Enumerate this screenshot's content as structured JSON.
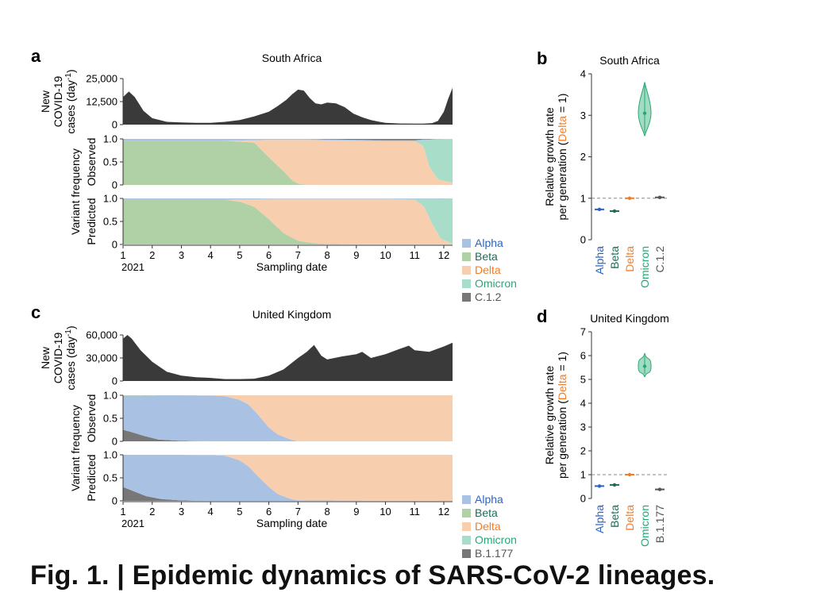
{
  "caption": "Fig. 1. | Epidemic dynamics of SARS-CoV-2 lineages.",
  "colors": {
    "Alpha": "#a9c1e3",
    "Beta": "#b0d0a6",
    "Delta": "#f8cfae",
    "Omicron": "#a8ddc9",
    "C.1.2": "#777777",
    "B.1.177": "#777777",
    "cases": "#3a3a3a",
    "AlphaDark": "#2b63c4",
    "BetaDark": "#1e6b58",
    "DeltaDark": "#f07c2a",
    "OmicronDark": "#2aa676",
    "OtherDark": "#555555"
  },
  "labels": {
    "sampling_date": "Sampling date",
    "new_cases_1": "New",
    "new_cases_2": "COVID-19",
    "new_cases_3": "cases (day",
    "new_cases_sup": "-1",
    "new_cases_end": ")",
    "variant_freq": "Variant frequency",
    "observed": "Observed",
    "predicted": "Predicted",
    "growth_1": "Relative growth rate",
    "growth_2a": "per generation (",
    "growth_delta": "Delta",
    "growth_2b": " = 1)"
  },
  "chart_data": [
    {
      "panel": "a",
      "title": "South Africa",
      "type": "area",
      "x_ticks": [
        "1",
        "2",
        "3",
        "4",
        "5",
        "6",
        "7",
        "8",
        "9",
        "10",
        "11",
        "12"
      ],
      "x_year": "2021",
      "xlabel": "Sampling date",
      "cases": {
        "ylim": [
          0,
          25000
        ],
        "yticks": [
          "0",
          "12,500",
          "25,000"
        ],
        "x": [
          1.0,
          1.2,
          1.4,
          1.7,
          2.0,
          2.5,
          3.0,
          3.5,
          4.0,
          4.5,
          5.0,
          5.5,
          6.0,
          6.3,
          6.6,
          6.8,
          7.0,
          7.2,
          7.4,
          7.6,
          7.8,
          8.0,
          8.3,
          8.6,
          8.9,
          9.2,
          9.5,
          9.8,
          10.0,
          10.5,
          11.0,
          11.3,
          11.6,
          11.8,
          12.0,
          12.15,
          12.3
        ],
        "y": [
          15000,
          18000,
          15000,
          7500,
          3500,
          1500,
          1200,
          1000,
          1000,
          1500,
          2500,
          4500,
          7000,
          10000,
          13500,
          16500,
          19000,
          18500,
          14500,
          11500,
          11000,
          12000,
          11500,
          9500,
          6000,
          4000,
          2500,
          1500,
          1000,
          600,
          500,
          500,
          800,
          2000,
          7000,
          14000,
          20000
        ]
      },
      "observed": {
        "ylim": [
          0,
          1
        ],
        "yticks": [
          "0",
          "0.5",
          "1.0"
        ],
        "x": [
          1,
          4.5,
          5.5,
          6.0,
          6.5,
          6.8,
          7.0,
          7.3,
          8.0,
          10.0,
          11.0,
          11.3,
          11.5,
          11.8,
          12.3
        ],
        "series": [
          {
            "name": "Beta",
            "values": [
              0.96,
              0.96,
              0.92,
              0.6,
              0.3,
              0.1,
              0.03,
              0.0,
              0.0,
              0.0,
              0.0,
              0.0,
              0.0,
              0.0,
              0.0
            ]
          },
          {
            "name": "Delta",
            "values": [
              0.0,
              0.0,
              0.05,
              0.38,
              0.68,
              0.88,
              0.95,
              0.98,
              0.97,
              0.95,
              0.95,
              0.85,
              0.4,
              0.12,
              0.05
            ]
          },
          {
            "name": "Omicron",
            "values": [
              0.0,
              0.0,
              0.0,
              0.0,
              0.0,
              0.0,
              0.0,
              0.0,
              0.0,
              0.0,
              0.0,
              0.12,
              0.58,
              0.87,
              0.95
            ]
          },
          {
            "name": "Alpha",
            "values": [
              0.04,
              0.04,
              0.03,
              0.02,
              0.02,
              0.02,
              0.02,
              0.02,
              0.02,
              0.02,
              0.02,
              0.02,
              0.01,
              0.01,
              0.0
            ]
          },
          {
            "name": "C.1.2",
            "values": [
              0.0,
              0.0,
              0.0,
              0.0,
              0.0,
              0.0,
              0.0,
              0.0,
              0.01,
              0.03,
              0.03,
              0.01,
              0.01,
              0.0,
              0.0
            ]
          }
        ]
      },
      "predicted": {
        "ylim": [
          0,
          1
        ],
        "yticks": [
          "0",
          "0.5",
          "1.0"
        ],
        "x": [
          1,
          4.5,
          5.0,
          5.5,
          6.0,
          6.5,
          7.0,
          7.5,
          8.0,
          10.0,
          11.0,
          11.3,
          11.6,
          11.9,
          12.3
        ],
        "series": [
          {
            "name": "Beta",
            "values": [
              0.97,
              0.97,
              0.93,
              0.82,
              0.55,
              0.25,
              0.08,
              0.03,
              0.01,
              0.0,
              0.0,
              0.0,
              0.0,
              0.0,
              0.0
            ]
          },
          {
            "name": "Delta",
            "values": [
              0.0,
              0.0,
              0.05,
              0.16,
              0.44,
              0.74,
              0.91,
              0.96,
              0.98,
              0.99,
              0.97,
              0.85,
              0.45,
              0.12,
              0.02
            ]
          },
          {
            "name": "Omicron",
            "values": [
              0.0,
              0.0,
              0.0,
              0.0,
              0.0,
              0.0,
              0.0,
              0.0,
              0.0,
              0.0,
              0.02,
              0.14,
              0.54,
              0.87,
              0.98
            ]
          },
          {
            "name": "Alpha",
            "values": [
              0.03,
              0.03,
              0.02,
              0.02,
              0.01,
              0.01,
              0.01,
              0.01,
              0.01,
              0.01,
              0.01,
              0.01,
              0.01,
              0.01,
              0.0
            ]
          },
          {
            "name": "C.1.2",
            "values": [
              0.0,
              0.0,
              0.0,
              0.0,
              0.0,
              0.0,
              0.0,
              0.0,
              0.0,
              0.0,
              0.0,
              0.0,
              0.0,
              0.0,
              0.0
            ]
          }
        ]
      },
      "legend": [
        "Alpha",
        "Beta",
        "Delta",
        "Omicron",
        "C.1.2"
      ]
    },
    {
      "panel": "b",
      "title": "South Africa",
      "type": "scatter",
      "ylim": [
        0,
        4
      ],
      "yticks": [
        "0",
        "1",
        "2",
        "3",
        "4"
      ],
      "ylabel": "Relative growth rate per generation (Delta = 1)",
      "reference": 1,
      "categories": [
        "Alpha",
        "Beta",
        "Delta",
        "Omicron",
        "C.1.2"
      ],
      "values": [
        0.73,
        0.69,
        1.0,
        3.05,
        1.02
      ],
      "ci_low": [
        0.69,
        0.65,
        0.98,
        2.5,
        0.99
      ],
      "ci_high": [
        0.77,
        0.73,
        1.02,
        3.8,
        1.05
      ]
    },
    {
      "panel": "c",
      "title": "United Kingdom",
      "type": "area",
      "x_ticks": [
        "1",
        "2",
        "3",
        "4",
        "5",
        "6",
        "7",
        "8",
        "9",
        "10",
        "11",
        "12"
      ],
      "x_year": "2021",
      "xlabel": "Sampling date",
      "cases": {
        "ylim": [
          0,
          60000
        ],
        "yticks": [
          "0",
          "30,000",
          "60,000"
        ],
        "x": [
          1.0,
          1.15,
          1.3,
          1.6,
          2.0,
          2.5,
          3.0,
          3.5,
          4.0,
          4.5,
          5.0,
          5.5,
          6.0,
          6.5,
          7.0,
          7.3,
          7.55,
          7.8,
          8.0,
          8.5,
          9.0,
          9.2,
          9.5,
          10.0,
          10.5,
          10.8,
          11.0,
          11.5,
          12.0,
          12.3
        ],
        "y": [
          55000,
          60000,
          55000,
          40000,
          25000,
          12000,
          7000,
          5000,
          4000,
          2500,
          2500,
          3000,
          7000,
          15000,
          30000,
          38000,
          47000,
          33000,
          28000,
          32000,
          35000,
          38000,
          30000,
          35000,
          42000,
          46000,
          40000,
          38000,
          45000,
          50000
        ]
      },
      "observed": {
        "ylim": [
          0,
          1
        ],
        "yticks": [
          "0",
          "0.5",
          "1.0"
        ],
        "x": [
          1,
          1.3,
          1.7,
          2.2,
          3.0,
          4.0,
          4.5,
          5.0,
          5.3,
          5.6,
          6.0,
          6.3,
          6.7,
          7.0,
          12.3
        ],
        "series": [
          {
            "name": "B.1.177",
            "values": [
              0.25,
              0.2,
              0.12,
              0.04,
              0.01,
              0.0,
              0.0,
              0.0,
              0.0,
              0.0,
              0.0,
              0.0,
              0.0,
              0.0,
              0.0
            ]
          },
          {
            "name": "Alpha",
            "values": [
              0.74,
              0.79,
              0.87,
              0.96,
              0.99,
              0.995,
              0.98,
              0.9,
              0.8,
              0.6,
              0.3,
              0.15,
              0.05,
              0.0,
              0.0
            ]
          },
          {
            "name": "Delta",
            "values": [
              0.0,
              0.0,
              0.0,
              0.0,
              0.0,
              0.005,
              0.02,
              0.1,
              0.2,
              0.4,
              0.7,
              0.85,
              0.95,
              1.0,
              1.0
            ]
          },
          {
            "name": "Beta",
            "values": [
              0.01,
              0.01,
              0.01,
              0.0,
              0.0,
              0.0,
              0.0,
              0.0,
              0.0,
              0.0,
              0.0,
              0.0,
              0.0,
              0.0,
              0.0
            ]
          },
          {
            "name": "Omicron",
            "values": [
              0.0,
              0.0,
              0.0,
              0.0,
              0.0,
              0.0,
              0.0,
              0.0,
              0.0,
              0.0,
              0.0,
              0.0,
              0.0,
              0.0,
              0.0
            ]
          }
        ]
      },
      "predicted": {
        "ylim": [
          0,
          1
        ],
        "yticks": [
          "0",
          "0.5",
          "1.0"
        ],
        "x": [
          1,
          1.4,
          1.8,
          2.3,
          3.0,
          4.0,
          4.5,
          5.0,
          5.3,
          5.6,
          6.0,
          6.3,
          6.7,
          7.0,
          12.3
        ],
        "series": [
          {
            "name": "B.1.177",
            "values": [
              0.3,
              0.2,
              0.1,
              0.04,
              0.01,
              0.0,
              0.0,
              0.0,
              0.0,
              0.0,
              0.0,
              0.0,
              0.0,
              0.0,
              0.0
            ]
          },
          {
            "name": "Alpha",
            "values": [
              0.7,
              0.8,
              0.9,
              0.96,
              0.99,
              0.995,
              0.98,
              0.88,
              0.75,
              0.55,
              0.3,
              0.15,
              0.05,
              0.01,
              0.0
            ]
          },
          {
            "name": "Delta",
            "values": [
              0.0,
              0.0,
              0.0,
              0.0,
              0.0,
              0.005,
              0.02,
              0.12,
              0.25,
              0.45,
              0.7,
              0.85,
              0.95,
              0.99,
              1.0
            ]
          },
          {
            "name": "Beta",
            "values": [
              0.0,
              0.0,
              0.0,
              0.0,
              0.0,
              0.0,
              0.0,
              0.0,
              0.0,
              0.0,
              0.0,
              0.0,
              0.0,
              0.0,
              0.0
            ]
          },
          {
            "name": "Omicron",
            "values": [
              0.0,
              0.0,
              0.0,
              0.0,
              0.0,
              0.0,
              0.0,
              0.0,
              0.0,
              0.0,
              0.0,
              0.0,
              0.0,
              0.0,
              0.0
            ]
          }
        ]
      },
      "legend": [
        "Alpha",
        "Beta",
        "Delta",
        "Omicron",
        "B.1.177"
      ]
    },
    {
      "panel": "d",
      "title": "United Kingdom",
      "type": "scatter",
      "ylim": [
        0,
        7
      ],
      "yticks": [
        "0",
        "1",
        "2",
        "3",
        "4",
        "5",
        "6",
        "7"
      ],
      "ylabel": "Relative growth rate per generation (Delta = 1)",
      "reference": 1,
      "categories": [
        "Alpha",
        "Beta",
        "Delta",
        "Omicron",
        "B.1.177"
      ],
      "values": [
        0.52,
        0.57,
        1.0,
        5.55,
        0.38
      ],
      "ci_low": [
        0.47,
        0.52,
        0.98,
        5.1,
        0.35
      ],
      "ci_high": [
        0.57,
        0.63,
        1.02,
        6.1,
        0.41
      ]
    }
  ]
}
